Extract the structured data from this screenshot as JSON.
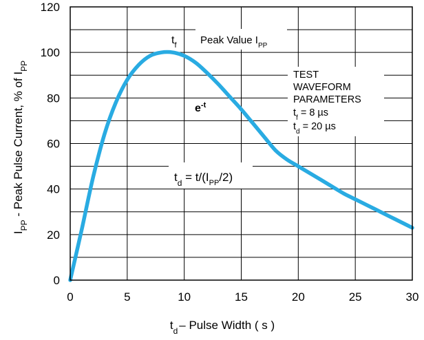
{
  "chart_data": {
    "type": "line",
    "xlabel": {
      "main": "t",
      "sub": "d",
      "rest": "– Pulse Width ( s )"
    },
    "ylabel": {
      "p1": "I",
      "s1": "PP",
      "p2": " - Peak Pulse Current, % of I",
      "s2": "PP"
    },
    "xlim": [
      0,
      30
    ],
    "ylim": [
      0,
      120
    ],
    "x_ticks": [
      "0",
      "5",
      "10",
      "15",
      "20",
      "25",
      "30"
    ],
    "y_ticks": [
      "0",
      "20",
      "40",
      "60",
      "80",
      "100",
      "120"
    ],
    "grid": true,
    "series": [
      {
        "color": "#29abe2",
        "points": [
          [
            0,
            0
          ],
          [
            1,
            22
          ],
          [
            2,
            45
          ],
          [
            3,
            64
          ],
          [
            4,
            78
          ],
          [
            5,
            88
          ],
          [
            6,
            94.5
          ],
          [
            7,
            98.5
          ],
          [
            8,
            100
          ],
          [
            9,
            100
          ],
          [
            10,
            98.5
          ],
          [
            11,
            95.5
          ],
          [
            12,
            91
          ],
          [
            13,
            86
          ],
          [
            14,
            80.5
          ],
          [
            15,
            75
          ],
          [
            16,
            69
          ],
          [
            17,
            63
          ],
          [
            18,
            57
          ],
          [
            19,
            53
          ],
          [
            20,
            50
          ],
          [
            21,
            47
          ],
          [
            22,
            44
          ],
          [
            23,
            41
          ],
          [
            24,
            38
          ],
          [
            25,
            35.5
          ],
          [
            26,
            33
          ],
          [
            27,
            30.5
          ],
          [
            28,
            28
          ],
          [
            29,
            25.5
          ],
          [
            30,
            23
          ]
        ]
      }
    ],
    "annotations": {
      "tf": {
        "main": "t",
        "sub": "f"
      },
      "peak": {
        "main": "Peak Value I",
        "sub": "PP"
      },
      "exp": {
        "main": "e",
        "sup": "-t"
      },
      "td_eq": {
        "p1": "t",
        "s1": "d",
        "p2": " = t/(I",
        "s2": "PP",
        "p3": "/2)"
      },
      "params": {
        "line1": "TEST",
        "line2": "WAVEFORM",
        "line3": "PARAMETERS",
        "tf": {
          "main": "t",
          "sub": "f",
          "rest": " = 8 µs"
        },
        "td": {
          "main": "t",
          "sub": "d",
          "rest": " = 20 µs"
        }
      }
    }
  }
}
